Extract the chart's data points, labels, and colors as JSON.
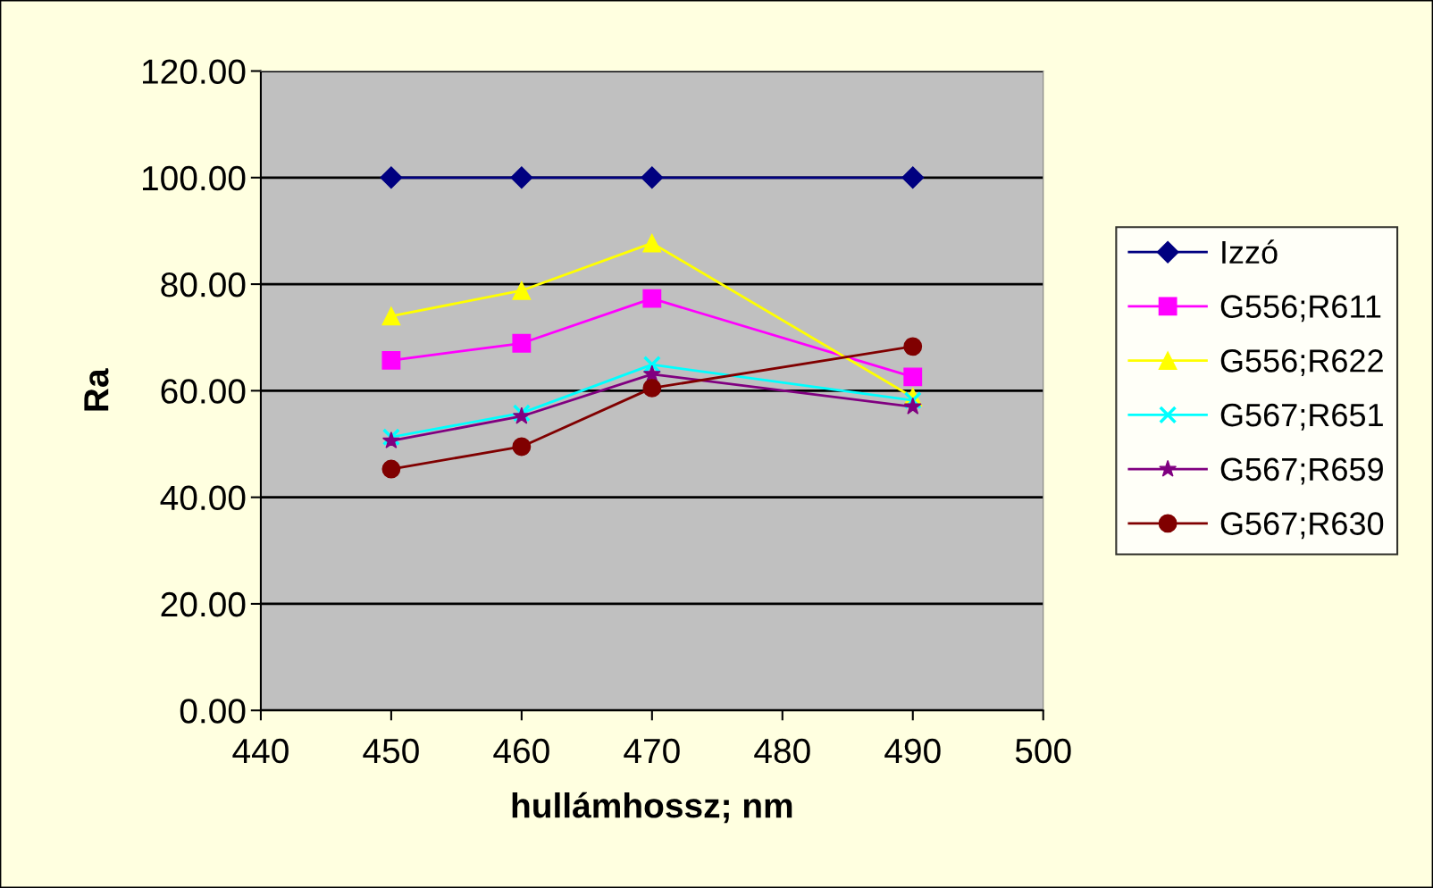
{
  "chart_data": {
    "type": "line",
    "xlabel": "hullámhossz; nm",
    "ylabel": "Ra",
    "x": [
      450,
      460,
      470,
      490
    ],
    "xlim": [
      440,
      500
    ],
    "xticks": [
      440,
      450,
      460,
      470,
      480,
      490,
      500
    ],
    "ylim": [
      0,
      120
    ],
    "yticks": [
      {
        "value": 0,
        "label": "0.00"
      },
      {
        "value": 20,
        "label": "20.00"
      },
      {
        "value": 40,
        "label": "40.00"
      },
      {
        "value": 60,
        "label": "60.00"
      },
      {
        "value": 80,
        "label": "80.00"
      },
      {
        "value": 100,
        "label": "100.00"
      },
      {
        "value": 120,
        "label": "120.00"
      }
    ],
    "grid": "y",
    "legend": "right",
    "series": [
      {
        "name": "Izzó",
        "color": "#000080",
        "marker": "diamond",
        "values": [
          100,
          100,
          100,
          100
        ]
      },
      {
        "name": "G556;R611",
        "color": "#ff00ff",
        "marker": "square",
        "values": [
          65.7,
          68.9,
          77.3,
          62.6
        ]
      },
      {
        "name": "G556;R622",
        "color": "#ffff00",
        "marker": "triangle",
        "values": [
          74.0,
          78.8,
          87.7,
          58.8
        ]
      },
      {
        "name": "G567;R651",
        "color": "#00ffff",
        "marker": "cross",
        "values": [
          51.3,
          55.8,
          64.9,
          58.2
        ]
      },
      {
        "name": "G567;R659",
        "color": "#800080",
        "marker": "star",
        "values": [
          50.6,
          55.2,
          63.1,
          57.0
        ]
      },
      {
        "name": "G567;R630",
        "color": "#800000",
        "marker": "circle",
        "values": [
          45.3,
          49.5,
          60.5,
          68.3
        ]
      }
    ]
  }
}
